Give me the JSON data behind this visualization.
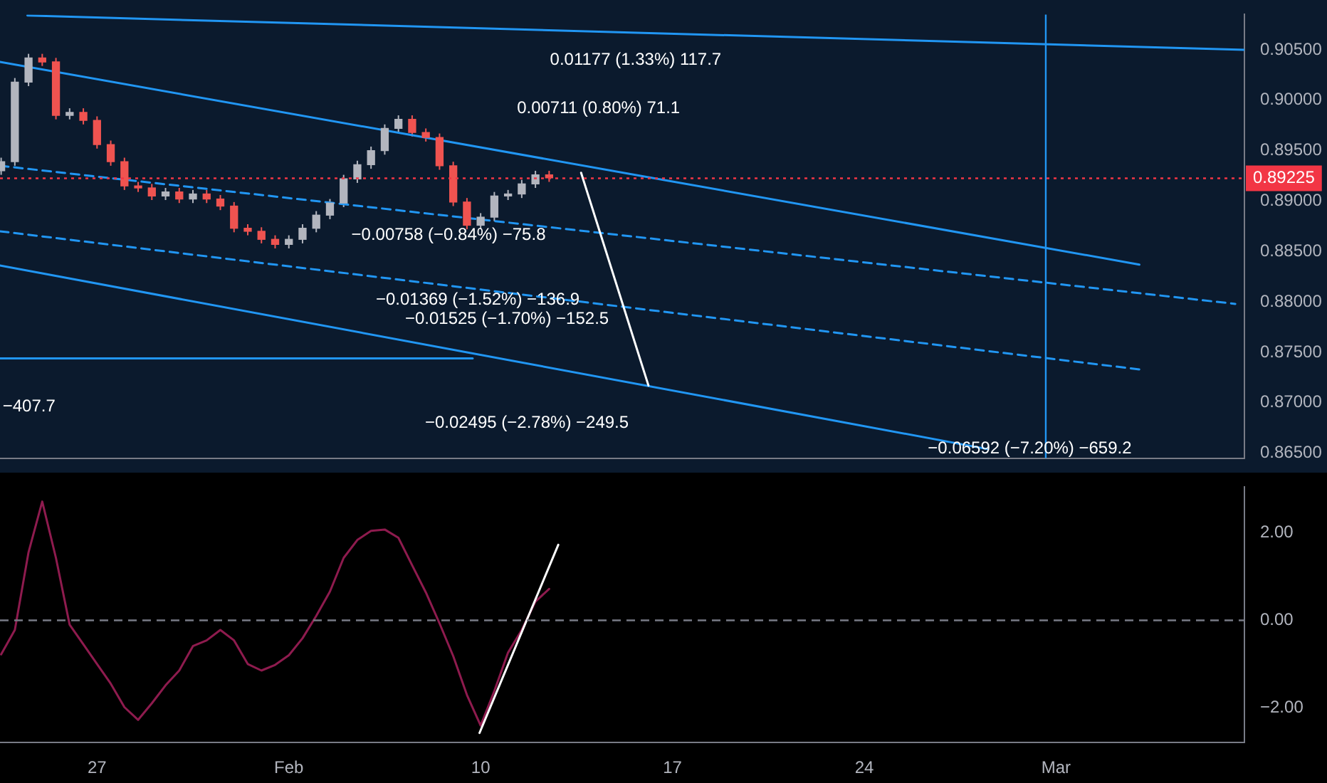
{
  "chart_data": [
    {
      "type": "candlestick",
      "tick_labels": "y",
      "marker": "none",
      "x": [
        "--01-23T12:00",
        "--01-24T00:00",
        "--01-24T12:00",
        "--01-25T00:00",
        "--01-25T12:00",
        "--01-26T00:00",
        "--01-26T12:00",
        "--01-27T00:00",
        "--01-27T12:00",
        "--01-28T00:00",
        "--01-28T12:00",
        "--01-29T00:00",
        "--01-29T12:00",
        "--01-30T00:00",
        "--01-30T12:00",
        "--01-31T00:00",
        "--01-31T12:00",
        "--02-01T00:00",
        "--02-01T12:00",
        "--02-02T00:00",
        "--02-02T12:00",
        "--02-03T00:00",
        "--02-03T12:00",
        "--02-04T00:00",
        "--02-04T12:00",
        "--02-05T00:00",
        "--02-05T12:00",
        "--02-06T00:00",
        "--02-06T12:00",
        "--02-07T00:00",
        "--02-07T12:00",
        "--02-08T00:00",
        "--02-08T12:00",
        "--02-09T00:00",
        "--02-09T12:00",
        "--02-10T00:00",
        "--02-10T12:00",
        "--02-11T00:00",
        "--02-11T12:00",
        "--02-12T00:00",
        "--02-12T12:00"
      ],
      "ohlc": [
        [
          0.893,
          0.8943,
          0.8926,
          0.8939
        ],
        [
          0.8939,
          0.9022,
          0.8935,
          0.9018
        ],
        [
          0.9018,
          0.9046,
          0.9014,
          0.9042
        ],
        [
          0.9042,
          0.9046,
          0.9034,
          0.9038
        ],
        [
          0.9038,
          0.9042,
          0.8981,
          0.8985
        ],
        [
          0.8985,
          0.8992,
          0.8981,
          0.8988
        ],
        [
          0.8988,
          0.8992,
          0.8976,
          0.898
        ],
        [
          0.898,
          0.8984,
          0.8952,
          0.8956
        ],
        [
          0.8956,
          0.896,
          0.8935,
          0.8939
        ],
        [
          0.8939,
          0.8943,
          0.8911,
          0.8915
        ],
        [
          0.8915,
          0.8919,
          0.8909,
          0.8913
        ],
        [
          0.8913,
          0.8917,
          0.8901,
          0.8905
        ],
        [
          0.8905,
          0.8913,
          0.8901,
          0.8909
        ],
        [
          0.8909,
          0.8913,
          0.8898,
          0.8902
        ],
        [
          0.8902,
          0.8911,
          0.8898,
          0.8907
        ],
        [
          0.8907,
          0.8911,
          0.8898,
          0.8902
        ],
        [
          0.8902,
          0.8906,
          0.8891,
          0.8895
        ],
        [
          0.8895,
          0.8899,
          0.8869,
          0.8873
        ],
        [
          0.8873,
          0.8877,
          0.8866,
          0.887
        ],
        [
          0.887,
          0.8874,
          0.8858,
          0.8862
        ],
        [
          0.8862,
          0.8866,
          0.8853,
          0.8857
        ],
        [
          0.8857,
          0.8866,
          0.8853,
          0.8862
        ],
        [
          0.8862,
          0.8877,
          0.8858,
          0.8873
        ],
        [
          0.8873,
          0.889,
          0.8869,
          0.8886
        ],
        [
          0.8886,
          0.8902,
          0.8882,
          0.8898
        ],
        [
          0.8898,
          0.8926,
          0.8894,
          0.8922
        ],
        [
          0.8922,
          0.894,
          0.8918,
          0.8936
        ],
        [
          0.8936,
          0.8954,
          0.8932,
          0.895
        ],
        [
          0.895,
          0.8976,
          0.8946,
          0.8972
        ],
        [
          0.8972,
          0.8985,
          0.8968,
          0.8981
        ],
        [
          0.8981,
          0.8985,
          0.8964,
          0.8968
        ],
        [
          0.8968,
          0.8972,
          0.8959,
          0.8963
        ],
        [
          0.8963,
          0.8967,
          0.8931,
          0.8935
        ],
        [
          0.8935,
          0.8939,
          0.8895,
          0.8899
        ],
        [
          0.8899,
          0.8903,
          0.8872,
          0.8876
        ],
        [
          0.8876,
          0.8888,
          0.8872,
          0.8884
        ],
        [
          0.8884,
          0.8909,
          0.888,
          0.8905
        ],
        [
          0.8905,
          0.8911,
          0.8901,
          0.8907
        ],
        [
          0.8907,
          0.8921,
          0.8903,
          0.8917
        ],
        [
          0.8917,
          0.893,
          0.8913,
          0.8926
        ],
        [
          0.8926,
          0.893,
          0.8919,
          0.8923
        ]
      ],
      "series": [
        {
          "type": "line",
          "color": "#2196f3",
          "x": [
            "--01-23T11:00",
            "--03-06T01:00"
          ],
          "values": [
            0.9038,
            0.8837
          ]
        },
        {
          "type": "line",
          "color": "#2196f3",
          "x": [
            "--01-23T11:00",
            "--02-28T12:00"
          ],
          "values": [
            0.8836,
            0.8654
          ]
        },
        {
          "type": "line",
          "color": "#2196f3",
          "line_style": "dashed",
          "x": [
            "--01-23T11:00",
            "--03-09T13:00"
          ],
          "values": [
            0.8935,
            0.8798
          ]
        },
        {
          "type": "line",
          "color": "#2196f3",
          "line_style": "dashed",
          "x": [
            "--01-23T11:00",
            "--03-06T01:00"
          ],
          "values": [
            0.887,
            0.8733
          ]
        },
        {
          "type": "line",
          "color": "#2196f3",
          "x": [
            "--01-24T11:00",
            "--03-09T21:00"
          ],
          "values": [
            0.9084,
            0.905
          ]
        },
        {
          "type": "line",
          "color": "#2196f3",
          "x": [
            "--01-23T11:00",
            "--02-09T17:00"
          ],
          "values": [
            0.8744,
            0.8744
          ]
        },
        {
          "type": "line",
          "color": "#ffffff",
          "x": [
            "--02-13T16:00",
            "--02-16T03:00"
          ],
          "values": [
            0.8928,
            0.8717
          ]
        }
      ],
      "ref_lines": [
        {
          "axis": "x",
          "value": "--03-02T15:00",
          "color": "#2196f3"
        },
        {
          "axis": "y",
          "value": 0.89225,
          "label": "0.89225",
          "color": "#f23645",
          "line_style": "dotted"
        }
      ],
      "annotations": [
        "0.01177 (1.33%) 117.7",
        "0.00711 (0.80%) 71.1",
        "−0.00758 (−0.84%) −75.8",
        "−0.01369 (−1.52%) −136.9",
        "−0.01525 (−1.70%) −152.5",
        "−0.02495 (−2.78%) −249.5",
        "−0.06592 (−7.20%) −659.2",
        "−407.7"
      ],
      "xlim": [
        "--01-23T11:00",
        "--03-09T21:00"
      ],
      "ylim": [
        0.8645,
        0.9085
      ],
      "yticks": [
        {
          "value": 0.865,
          "label": "0.86500"
        },
        {
          "value": 0.87,
          "label": "0.87000"
        },
        {
          "value": 0.875,
          "label": "0.87500"
        },
        {
          "value": 0.88,
          "label": "0.88000"
        },
        {
          "value": 0.885,
          "label": "0.88500"
        },
        {
          "value": 0.89,
          "label": "0.89000"
        },
        {
          "value": 0.895,
          "label": "0.89500"
        },
        {
          "value": 0.9,
          "label": "0.90000"
        },
        {
          "value": 0.905,
          "label": "0.90500"
        }
      ]
    },
    {
      "type": "line",
      "marker": "none",
      "series": [
        {
          "color": "#8e1b4e",
          "x": [
            "--01-23T12:00",
            "--01-24T00:00",
            "--01-24T12:00",
            "--01-25T00:00",
            "--01-25T12:00",
            "--01-26T00:00",
            "--01-26T12:00",
            "--01-27T00:00",
            "--01-27T12:00",
            "--01-28T00:00",
            "--01-28T12:00",
            "--01-29T00:00",
            "--01-29T12:00",
            "--01-30T00:00",
            "--01-30T12:00",
            "--01-31T00:00",
            "--01-31T12:00",
            "--02-01T00:00",
            "--02-01T12:00",
            "--02-02T00:00",
            "--02-02T12:00",
            "--02-03T00:00",
            "--02-03T12:00",
            "--02-04T00:00",
            "--02-04T12:00",
            "--02-05T00:00",
            "--02-05T12:00",
            "--02-06T00:00",
            "--02-06T12:00",
            "--02-07T00:00",
            "--02-07T12:00",
            "--02-08T00:00",
            "--02-08T12:00",
            "--02-09T00:00",
            "--02-09T12:00",
            "--02-10T00:00",
            "--02-10T12:00",
            "--02-11T00:00",
            "--02-11T12:00",
            "--02-12T00:00",
            "--02-12T12:00"
          ],
          "values": [
            -0.78,
            -0.22,
            1.56,
            2.72,
            1.43,
            -0.1,
            -0.55,
            -1.0,
            -1.45,
            -1.99,
            -2.28,
            -1.9,
            -1.49,
            -1.15,
            -0.59,
            -0.46,
            -0.22,
            -0.46,
            -1.0,
            -1.15,
            -1.02,
            -0.8,
            -0.41,
            0.1,
            0.66,
            1.43,
            1.84,
            2.05,
            2.08,
            1.89,
            1.26,
            0.64,
            -0.07,
            -0.82,
            -1.71,
            -2.41,
            -1.62,
            -0.74,
            -0.22,
            0.43,
            0.72
          ]
        },
        {
          "color": "#ffffff",
          "x": [
            "--02-09T23:00",
            "--02-12T20:00"
          ],
          "values": [
            -2.58,
            1.73
          ]
        }
      ],
      "ref_lines": [
        {
          "axis": "y",
          "value": 0,
          "color": "#787b86",
          "line_style": "dashed"
        }
      ],
      "xlim": [
        "--01-23T11:00",
        "--03-09T21:00"
      ],
      "xticks": [
        {
          "value": "--01-27",
          "label": "27"
        },
        {
          "value": "--02-03",
          "label": "Feb"
        },
        {
          "value": "--02-10",
          "label": "10"
        },
        {
          "value": "--02-17",
          "label": "17"
        },
        {
          "value": "--02-24",
          "label": "24"
        },
        {
          "value": "--03-03",
          "label": "Mar"
        }
      ],
      "ylim": [
        -2.8,
        3.05
      ],
      "yticks": [
        {
          "value": -2,
          "label": "−2.00"
        },
        {
          "value": 0,
          "label": "0.00"
        },
        {
          "value": 2,
          "label": "2.00"
        }
      ]
    }
  ]
}
